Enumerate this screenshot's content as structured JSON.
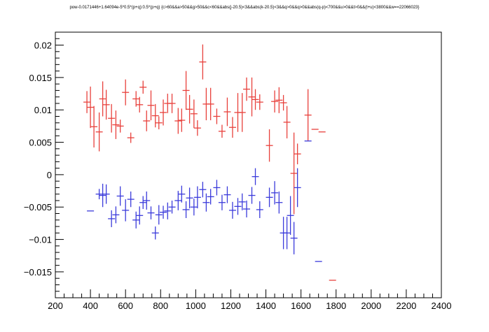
{
  "chart_data": {
    "type": "scatter",
    "title": "pow-0.0171446+1.64094e-5*0.5*(p+q):0.5*(p+q) {c>60&&a>50&&g>50&&c<60&&abs(j-20.5)<3&&abs(k-20.5)<3&&q>0&&q>0&&abs(q-p)<700&&u>0&&t>0&&(t+u)<3800&&w==22066023}",
    "xlim": [
      200,
      2400
    ],
    "ylim": [
      -0.019,
      0.022
    ],
    "xticks": [
      200,
      400,
      600,
      800,
      1000,
      1200,
      1400,
      1600,
      1800,
      2000,
      2200,
      2400
    ],
    "xtick_labels": [
      "200",
      "400",
      "600",
      "800",
      "1000",
      "1200",
      "1400",
      "1600",
      "1800",
      "2000",
      "2200",
      "2400"
    ],
    "yticks": [
      -0.015,
      -0.01,
      -0.005,
      0,
      0.005,
      0.01,
      0.015,
      0.02
    ],
    "ytick_labels": [
      "−0.015",
      "−0.01",
      "−0.005",
      "0",
      "0.005",
      "0.01",
      "0.015",
      "0.02"
    ],
    "grid": false,
    "series": [
      {
        "color": "#e8413c",
        "x_halfwidth": 20,
        "points": [
          [
            380,
            0.0112,
            0.0017
          ],
          [
            400,
            0.0104,
            0.0032
          ],
          [
            420,
            0.0074,
            0.0032
          ],
          [
            450,
            0.0066,
            0.003
          ],
          [
            470,
            0.0117,
            0.0027
          ],
          [
            490,
            0.0108,
            0.0023
          ],
          [
            520,
            0.0087,
            0.0022
          ],
          [
            545,
            0.0077,
            0.0022
          ],
          [
            570,
            0.0075,
            0.001
          ],
          [
            600,
            0.0127,
            0.002
          ],
          [
            630,
            0.0057,
            0.0008
          ],
          [
            660,
            0.0117,
            0.0012
          ],
          [
            680,
            0.0108,
            0.0012
          ],
          [
            700,
            0.0135,
            0.001
          ],
          [
            720,
            0.0083,
            0.0016
          ],
          [
            745,
            0.0107,
            0.0023
          ],
          [
            770,
            0.0091,
            0.0018
          ],
          [
            790,
            0.008,
            0.001
          ],
          [
            815,
            0.0096,
            0.002
          ],
          [
            840,
            0.011,
            0.0015
          ],
          [
            865,
            0.011,
            0.0015
          ],
          [
            900,
            0.0083,
            0.002
          ],
          [
            920,
            0.0084,
            0.0018
          ],
          [
            945,
            0.013,
            0.003
          ],
          [
            965,
            0.0101,
            0.0022
          ],
          [
            990,
            0.0094,
            0.0022
          ],
          [
            1010,
            0.0072,
            0.0012
          ],
          [
            1040,
            0.0174,
            0.0027
          ],
          [
            1060,
            0.0109,
            0.0025
          ],
          [
            1085,
            0.0109,
            0.0025
          ],
          [
            1120,
            0.009,
            0.0012
          ],
          [
            1150,
            0.0067,
            0.001
          ],
          [
            1180,
            0.0097,
            0.0022
          ],
          [
            1210,
            0.0073,
            0.0016
          ],
          [
            1240,
            0.0096,
            0.003
          ],
          [
            1265,
            0.0096,
            0.003
          ],
          [
            1290,
            0.0132,
            0.0018
          ],
          [
            1320,
            0.012,
            0.003
          ],
          [
            1340,
            0.0116,
            0.0016
          ],
          [
            1365,
            0.0112,
            0.0012
          ],
          [
            1420,
            0.0045,
            0.0025
          ],
          [
            1450,
            0.0113,
            0.0017
          ],
          [
            1475,
            0.0115,
            0.002
          ],
          [
            1500,
            0.0111,
            0.0012
          ],
          [
            1520,
            0.0081,
            0.0025
          ],
          [
            1560,
            0.0002,
            0.0063
          ],
          [
            1580,
            0.0032,
            0.0016
          ],
          [
            1640,
            0.0092,
            0.004
          ],
          [
            1680,
            0.007,
            0
          ],
          [
            1720,
            0.0066,
            0
          ],
          [
            1780,
            -0.0163,
            0
          ]
        ]
      },
      {
        "color": "#3b3bdb",
        "x_halfwidth": 20,
        "points": [
          [
            400,
            -0.0056,
            0
          ],
          [
            450,
            -0.003,
            0.0008
          ],
          [
            470,
            -0.0032,
            0.0018
          ],
          [
            490,
            -0.003,
            0.0015
          ],
          [
            520,
            -0.0068,
            0.0013
          ],
          [
            545,
            -0.0062,
            0.0013
          ],
          [
            570,
            -0.0033,
            0.0015
          ],
          [
            600,
            -0.0055,
            0.0017
          ],
          [
            630,
            -0.0038,
            0.0012
          ],
          [
            660,
            -0.007,
            0.0013
          ],
          [
            680,
            -0.0063,
            0.0014
          ],
          [
            700,
            -0.0043,
            0.001
          ],
          [
            720,
            -0.004,
            0.0014
          ],
          [
            745,
            -0.0059,
            0.001
          ],
          [
            770,
            -0.009,
            0.001
          ],
          [
            790,
            -0.0062,
            0.0015
          ],
          [
            815,
            -0.0058,
            0.001
          ],
          [
            840,
            -0.0056,
            0.0013
          ],
          [
            865,
            -0.005,
            0.001
          ],
          [
            900,
            -0.004,
            0.0015
          ],
          [
            920,
            -0.003,
            0.0013
          ],
          [
            945,
            -0.0054,
            0.0013
          ],
          [
            965,
            -0.0036,
            0.0016
          ],
          [
            990,
            -0.005,
            0.0013
          ],
          [
            1010,
            -0.0035,
            0.0017
          ],
          [
            1040,
            -0.0023,
            0.0012
          ],
          [
            1060,
            -0.0043,
            0.0014
          ],
          [
            1085,
            -0.0034,
            0.0012
          ],
          [
            1120,
            -0.002,
            0.0012
          ],
          [
            1150,
            -0.0043,
            0.0012
          ],
          [
            1180,
            -0.0031,
            0.0013
          ],
          [
            1210,
            -0.0055,
            0.0013
          ],
          [
            1240,
            -0.0049,
            0.0013
          ],
          [
            1265,
            -0.0042,
            0.0013
          ],
          [
            1290,
            -0.0053,
            0.0013
          ],
          [
            1320,
            -0.0032,
            0.0013
          ],
          [
            1340,
            -0.0003,
            0.0013
          ],
          [
            1365,
            -0.0054,
            0.0013
          ],
          [
            1420,
            -0.0035,
            0.0015
          ],
          [
            1450,
            -0.0028,
            0.0018
          ],
          [
            1475,
            -0.0043,
            0.0017
          ],
          [
            1500,
            -0.009,
            0.0025
          ],
          [
            1520,
            -0.009,
            0.0025
          ],
          [
            1540,
            -0.0063,
            0.003
          ],
          [
            1560,
            -0.0098,
            0.0025
          ],
          [
            1580,
            -0.002,
            0.003
          ],
          [
            1640,
            0.0052,
            0
          ],
          [
            1700,
            -0.0134,
            0
          ]
        ]
      }
    ]
  }
}
